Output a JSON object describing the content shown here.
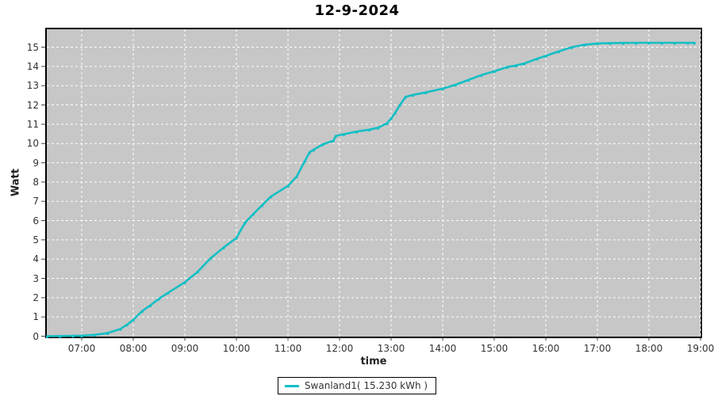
{
  "chart_data": {
    "type": "line",
    "title": "12-9-2024",
    "xlabel": "time",
    "ylabel": "Watt",
    "x_tick_labels": [
      "07:00",
      "08:00",
      "09:00",
      "10:00",
      "11:00",
      "12:00",
      "13:00",
      "14:00",
      "15:00",
      "16:00",
      "17:00",
      "18:00",
      "19:00"
    ],
    "y_tick_labels": [
      "0",
      "1",
      "2",
      "3",
      "4",
      "5",
      "6",
      "7",
      "8",
      "9",
      "10",
      "11",
      "12",
      "13",
      "14",
      "15"
    ],
    "ylim": [
      0,
      16
    ],
    "x_range_hours": [
      6.29,
      19.05
    ],
    "grid": "white dashed gridlines on gray plot background",
    "legend_position": "bottom-center",
    "series": [
      {
        "name": "Swanland1( 15.230 kWh )",
        "color": "#13bfc5",
        "total_kwh": "15.230",
        "points": [
          [
            6.33,
            0.0
          ],
          [
            6.58,
            0.01
          ],
          [
            6.83,
            0.02
          ],
          [
            7.0,
            0.03
          ],
          [
            7.25,
            0.07
          ],
          [
            7.5,
            0.16
          ],
          [
            7.75,
            0.38
          ],
          [
            7.88,
            0.6
          ],
          [
            8.0,
            0.85
          ],
          [
            8.17,
            1.3
          ],
          [
            8.33,
            1.6
          ],
          [
            8.5,
            1.95
          ],
          [
            8.67,
            2.25
          ],
          [
            9.0,
            2.8
          ],
          [
            9.25,
            3.35
          ],
          [
            9.5,
            4.05
          ],
          [
            9.75,
            4.6
          ],
          [
            10.0,
            5.1
          ],
          [
            10.17,
            5.9
          ],
          [
            10.33,
            6.35
          ],
          [
            10.5,
            6.8
          ],
          [
            10.67,
            7.25
          ],
          [
            11.0,
            7.8
          ],
          [
            11.17,
            8.3
          ],
          [
            11.33,
            9.1
          ],
          [
            11.42,
            9.55
          ],
          [
            11.5,
            9.68
          ],
          [
            11.67,
            9.95
          ],
          [
            11.88,
            10.15
          ],
          [
            11.93,
            10.4
          ],
          [
            12.08,
            10.48
          ],
          [
            12.33,
            10.62
          ],
          [
            12.58,
            10.72
          ],
          [
            12.75,
            10.82
          ],
          [
            12.92,
            11.05
          ],
          [
            13.0,
            11.3
          ],
          [
            13.08,
            11.6
          ],
          [
            13.17,
            12.0
          ],
          [
            13.28,
            12.42
          ],
          [
            13.42,
            12.52
          ],
          [
            13.67,
            12.65
          ],
          [
            14.0,
            12.85
          ],
          [
            14.25,
            13.05
          ],
          [
            14.5,
            13.3
          ],
          [
            14.75,
            13.55
          ],
          [
            15.0,
            13.75
          ],
          [
            15.25,
            13.97
          ],
          [
            15.42,
            14.05
          ],
          [
            15.58,
            14.15
          ],
          [
            15.83,
            14.4
          ],
          [
            16.0,
            14.55
          ],
          [
            16.25,
            14.78
          ],
          [
            16.5,
            15.0
          ],
          [
            16.75,
            15.13
          ],
          [
            17.0,
            15.19
          ],
          [
            17.25,
            15.21
          ],
          [
            17.5,
            15.22
          ],
          [
            17.75,
            15.23
          ],
          [
            18.0,
            15.23
          ],
          [
            18.25,
            15.23
          ],
          [
            18.5,
            15.23
          ],
          [
            18.75,
            15.23
          ],
          [
            18.88,
            15.23
          ]
        ]
      }
    ],
    "colors": {
      "line": "#13bfc5",
      "plot_background": "#c7c7c7",
      "gridline": "#ffffff",
      "tick_text": "#333333",
      "title_text": "#000000",
      "plot_border": "#000000"
    }
  }
}
